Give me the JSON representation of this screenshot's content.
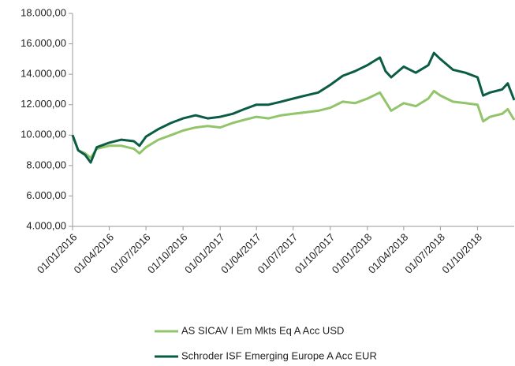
{
  "chart_data": {
    "type": "line",
    "x": [
      "01/01/2016",
      "15/01/2016",
      "01/02/2016",
      "15/02/2016",
      "01/03/2016",
      "01/04/2016",
      "01/05/2016",
      "01/06/2016",
      "15/06/2016",
      "01/07/2016",
      "01/08/2016",
      "01/09/2016",
      "01/10/2016",
      "01/11/2016",
      "01/12/2016",
      "01/01/2017",
      "01/02/2017",
      "01/03/2017",
      "01/04/2017",
      "01/05/2017",
      "01/06/2017",
      "01/07/2017",
      "01/08/2017",
      "01/09/2017",
      "01/10/2017",
      "01/11/2017",
      "01/12/2017",
      "01/01/2018",
      "01/02/2018",
      "15/02/2018",
      "01/03/2018",
      "01/04/2018",
      "01/05/2018",
      "01/06/2018",
      "15/06/2018",
      "01/07/2018",
      "01/08/2018",
      "01/09/2018",
      "01/10/2018",
      "15/10/2018",
      "01/11/2018",
      "01/12/2018",
      "15/12/2018",
      "31/12/2018"
    ],
    "series": [
      {
        "name": "AS SICAV I Em Mkts Eq A Acc USD",
        "color": "#92c46a",
        "values": [
          10000,
          9000,
          8800,
          8500,
          9100,
          9300,
          9300,
          9100,
          8800,
          9200,
          9700,
          10000,
          10300,
          10500,
          10600,
          10500,
          10800,
          11000,
          11200,
          11100,
          11300,
          11400,
          11500,
          11600,
          11800,
          12200,
          12100,
          12400,
          12800,
          12200,
          11600,
          12100,
          11900,
          12400,
          12900,
          12600,
          12200,
          12100,
          12000,
          10900,
          11200,
          11400,
          11700,
          11000
        ]
      },
      {
        "name": "Schroder ISF Emerging Europe A Acc EUR",
        "color": "#0b5c45",
        "values": [
          10000,
          9000,
          8700,
          8200,
          9200,
          9500,
          9700,
          9600,
          9300,
          9900,
          10400,
          10800,
          11100,
          11300,
          11100,
          11200,
          11400,
          11700,
          12000,
          12000,
          12200,
          12400,
          12600,
          12800,
          13300,
          13900,
          14200,
          14600,
          15100,
          14200,
          13800,
          14500,
          14100,
          14600,
          15400,
          15000,
          14300,
          14100,
          13800,
          12600,
          12800,
          13000,
          13400,
          12300
        ]
      }
    ],
    "xlim": [
      "01/01/2016",
      "31/12/2018"
    ],
    "xticks": [
      "01/01/2016",
      "01/04/2016",
      "01/07/2016",
      "01/10/2016",
      "01/01/2017",
      "01/04/2017",
      "01/07/2017",
      "01/10/2017",
      "01/01/2018",
      "01/04/2018",
      "01/07/2018",
      "01/10/2018"
    ],
    "ylim": [
      4000,
      18000
    ],
    "yticks": [
      {
        "value": 4000,
        "label": "4.000,00"
      },
      {
        "value": 6000,
        "label": "6.000,00"
      },
      {
        "value": 8000,
        "label": "8.000,00"
      },
      {
        "value": 10000,
        "label": "10.000,00"
      },
      {
        "value": 12000,
        "label": "12.000,00"
      },
      {
        "value": 14000,
        "label": "14.000,00"
      },
      {
        "value": 16000,
        "label": "16.000,00"
      },
      {
        "value": 18000,
        "label": "18.000,00"
      }
    ]
  }
}
